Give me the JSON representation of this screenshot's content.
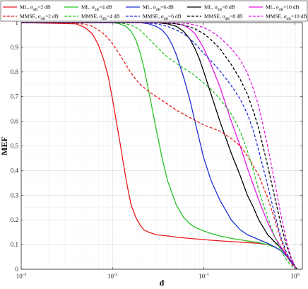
{
  "chart_data": {
    "type": "line",
    "title": "",
    "xlabel": "d",
    "ylabel": "MEF",
    "x_scale": "log",
    "xlim": [
      0.001,
      1.2
    ],
    "ylim": [
      0,
      1
    ],
    "grid": true,
    "x_ticks": [
      {
        "value": 0.001,
        "base": "10",
        "exp": "-3"
      },
      {
        "value": 0.01,
        "base": "10",
        "exp": "-2"
      },
      {
        "value": 0.1,
        "base": "10",
        "exp": "-1"
      },
      {
        "value": 1,
        "base": "10",
        "exp": "0"
      }
    ],
    "y_ticks": [
      0,
      0.1,
      0.2,
      0.3,
      0.4,
      0.5,
      0.6,
      0.7,
      0.8,
      0.9,
      1
    ],
    "y_tick_labels": [
      "0",
      "0.1",
      "0.2",
      "0.3",
      "0.4",
      "0.5",
      "0.6",
      "0.7",
      "0.8",
      "0.9",
      "1"
    ],
    "legend": {
      "position": "top",
      "columns": 5,
      "entries": [
        {
          "prefix": "ML, ",
          "sub": "dB",
          "suffix": "=2 dB"
        },
        {
          "prefix": "ML, ",
          "sub": "dB",
          "suffix": "=4 dB"
        },
        {
          "prefix": "ML, ",
          "sub": "dB",
          "suffix": "=6 dB"
        },
        {
          "prefix": "ML, ",
          "sub": "dB",
          "suffix": "=8 dB"
        },
        {
          "prefix": "ML, ",
          "sub": "dB",
          "suffix": "=10 dB"
        },
        {
          "prefix": "MMSE, ",
          "sub": "dB",
          "suffix": "=2 dB"
        },
        {
          "prefix": "MMSE, ",
          "sub": "dB",
          "suffix": "=4 dB"
        },
        {
          "prefix": "MMSE, ",
          "sub": "dB",
          "suffix": "=6 dB"
        },
        {
          "prefix": "MMSE, ",
          "sub": "dB",
          "suffix": "=8 dB"
        },
        {
          "prefix": "MMSE, ",
          "sub": "dB",
          "suffix": "=10 dB"
        }
      ]
    },
    "series": [
      {
        "color": "#e8191c",
        "dash": "solid",
        "x": [
          0.001,
          0.004,
          0.005,
          0.006,
          0.007,
          0.008,
          0.009,
          0.01,
          0.011,
          0.012,
          0.013,
          0.014,
          0.015,
          0.016,
          0.018,
          0.02,
          0.022,
          0.025,
          0.03,
          0.04,
          0.05,
          0.07,
          0.1,
          0.15,
          0.2,
          0.3,
          0.4,
          0.5,
          0.6,
          0.7,
          0.8,
          0.9,
          1.0,
          1.05
        ],
        "y": [
          1.0,
          0.995,
          0.98,
          0.955,
          0.91,
          0.85,
          0.78,
          0.69,
          0.6,
          0.52,
          0.44,
          0.37,
          0.31,
          0.26,
          0.21,
          0.18,
          0.16,
          0.15,
          0.14,
          0.135,
          0.13,
          0.125,
          0.12,
          0.115,
          0.112,
          0.108,
          0.105,
          0.1,
          0.09,
          0.075,
          0.055,
          0.03,
          0.01,
          0.0
        ]
      },
      {
        "color": "#27c227",
        "dash": "solid",
        "x": [
          0.001,
          0.01,
          0.012,
          0.014,
          0.016,
          0.018,
          0.02,
          0.022,
          0.025,
          0.03,
          0.035,
          0.04,
          0.05,
          0.06,
          0.07,
          0.08,
          0.1,
          0.12,
          0.15,
          0.2,
          0.3,
          0.4,
          0.5,
          0.6,
          0.7,
          0.8,
          0.9,
          1.0,
          1.05
        ],
        "y": [
          1.0,
          1.0,
          0.995,
          0.985,
          0.965,
          0.93,
          0.88,
          0.82,
          0.72,
          0.57,
          0.45,
          0.36,
          0.26,
          0.21,
          0.185,
          0.17,
          0.155,
          0.145,
          0.135,
          0.125,
          0.115,
          0.108,
          0.1,
          0.09,
          0.075,
          0.055,
          0.03,
          0.01,
          0.0
        ]
      },
      {
        "color": "#1c2ed6",
        "dash": "solid",
        "x": [
          0.001,
          0.02,
          0.025,
          0.03,
          0.035,
          0.04,
          0.045,
          0.05,
          0.06,
          0.07,
          0.08,
          0.09,
          0.1,
          0.12,
          0.15,
          0.2,
          0.25,
          0.3,
          0.4,
          0.5,
          0.6,
          0.7,
          0.8,
          0.9,
          1.0,
          1.05
        ],
        "y": [
          1.0,
          1.0,
          0.995,
          0.985,
          0.97,
          0.945,
          0.91,
          0.87,
          0.78,
          0.69,
          0.6,
          0.52,
          0.45,
          0.36,
          0.28,
          0.2,
          0.16,
          0.14,
          0.12,
          0.105,
          0.09,
          0.075,
          0.055,
          0.03,
          0.01,
          0.0
        ]
      },
      {
        "color": "#000000",
        "dash": "solid",
        "x": [
          0.001,
          0.03,
          0.04,
          0.05,
          0.06,
          0.07,
          0.08,
          0.09,
          0.1,
          0.12,
          0.15,
          0.2,
          0.25,
          0.3,
          0.35,
          0.4,
          0.5,
          0.6,
          0.7,
          0.8,
          0.9,
          1.0,
          1.05
        ],
        "y": [
          1.0,
          1.0,
          0.995,
          0.985,
          0.965,
          0.935,
          0.895,
          0.85,
          0.8,
          0.71,
          0.6,
          0.47,
          0.38,
          0.3,
          0.25,
          0.2,
          0.14,
          0.11,
          0.085,
          0.06,
          0.035,
          0.01,
          0.0
        ]
      },
      {
        "color": "#e619e6",
        "dash": "solid",
        "x": [
          0.001,
          0.04,
          0.05,
          0.06,
          0.07,
          0.08,
          0.09,
          0.1,
          0.12,
          0.15,
          0.2,
          0.25,
          0.3,
          0.35,
          0.4,
          0.5,
          0.6,
          0.7,
          0.8,
          0.9,
          1.0,
          1.05
        ],
        "y": [
          1.0,
          1.0,
          0.995,
          0.99,
          0.975,
          0.955,
          0.925,
          0.895,
          0.83,
          0.74,
          0.6,
          0.5,
          0.41,
          0.34,
          0.28,
          0.19,
          0.13,
          0.09,
          0.06,
          0.035,
          0.01,
          0.0
        ]
      },
      {
        "color": "#e8191c",
        "dash": "dashed",
        "x": [
          0.001,
          0.004,
          0.005,
          0.006,
          0.007,
          0.008,
          0.009,
          0.01,
          0.012,
          0.014,
          0.016,
          0.018,
          0.02,
          0.025,
          0.03,
          0.04,
          0.05,
          0.07,
          0.1,
          0.15,
          0.2,
          0.25,
          0.3,
          0.4,
          0.5,
          0.6,
          0.7,
          0.8,
          0.9,
          1.0,
          1.05
        ],
        "y": [
          1.0,
          0.998,
          0.993,
          0.985,
          0.97,
          0.955,
          0.935,
          0.915,
          0.87,
          0.83,
          0.795,
          0.77,
          0.75,
          0.72,
          0.7,
          0.67,
          0.645,
          0.615,
          0.585,
          0.56,
          0.53,
          0.5,
          0.46,
          0.38,
          0.29,
          0.2,
          0.12,
          0.06,
          0.025,
          0.005,
          0.0
        ]
      },
      {
        "color": "#27c227",
        "dash": "dashed",
        "x": [
          0.001,
          0.01,
          0.012,
          0.014,
          0.016,
          0.018,
          0.02,
          0.022,
          0.025,
          0.03,
          0.035,
          0.04,
          0.05,
          0.06,
          0.07,
          0.08,
          0.1,
          0.12,
          0.15,
          0.2,
          0.25,
          0.3,
          0.35,
          0.4,
          0.5,
          0.6,
          0.7,
          0.8,
          0.9,
          1.0,
          1.05
        ],
        "y": [
          1.0,
          1.0,
          0.998,
          0.995,
          0.99,
          0.98,
          0.97,
          0.955,
          0.935,
          0.905,
          0.88,
          0.86,
          0.835,
          0.815,
          0.8,
          0.785,
          0.755,
          0.73,
          0.69,
          0.63,
          0.56,
          0.48,
          0.4,
          0.32,
          0.21,
          0.13,
          0.075,
          0.04,
          0.015,
          0.005,
          0.0
        ]
      },
      {
        "color": "#1c2ed6",
        "dash": "dashed",
        "x": [
          0.001,
          0.02,
          0.025,
          0.03,
          0.035,
          0.04,
          0.05,
          0.06,
          0.07,
          0.08,
          0.1,
          0.12,
          0.15,
          0.2,
          0.25,
          0.3,
          0.35,
          0.4,
          0.5,
          0.6,
          0.7,
          0.8,
          0.9,
          1.0,
          1.05
        ],
        "y": [
          1.0,
          1.0,
          0.998,
          0.995,
          0.99,
          0.985,
          0.97,
          0.955,
          0.935,
          0.915,
          0.875,
          0.845,
          0.805,
          0.745,
          0.69,
          0.63,
          0.56,
          0.48,
          0.34,
          0.22,
          0.13,
          0.07,
          0.03,
          0.01,
          0.0
        ]
      },
      {
        "color": "#000000",
        "dash": "dashed",
        "x": [
          0.001,
          0.03,
          0.04,
          0.05,
          0.06,
          0.07,
          0.08,
          0.1,
          0.12,
          0.15,
          0.2,
          0.25,
          0.3,
          0.35,
          0.4,
          0.5,
          0.6,
          0.7,
          0.8,
          0.9,
          1.0,
          1.05
        ],
        "y": [
          1.0,
          1.0,
          0.998,
          0.995,
          0.99,
          0.983,
          0.975,
          0.955,
          0.93,
          0.895,
          0.83,
          0.77,
          0.71,
          0.64,
          0.57,
          0.42,
          0.29,
          0.18,
          0.1,
          0.045,
          0.01,
          0.0
        ]
      },
      {
        "color": "#e619e6",
        "dash": "dashed",
        "x": [
          0.001,
          0.05,
          0.06,
          0.07,
          0.08,
          0.1,
          0.12,
          0.15,
          0.2,
          0.25,
          0.3,
          0.35,
          0.4,
          0.5,
          0.6,
          0.7,
          0.8,
          0.9,
          1.0,
          1.05
        ],
        "y": [
          1.0,
          1.0,
          0.998,
          0.995,
          0.99,
          0.98,
          0.965,
          0.94,
          0.895,
          0.85,
          0.795,
          0.73,
          0.66,
          0.5,
          0.35,
          0.22,
          0.12,
          0.05,
          0.01,
          0.0
        ]
      }
    ]
  }
}
